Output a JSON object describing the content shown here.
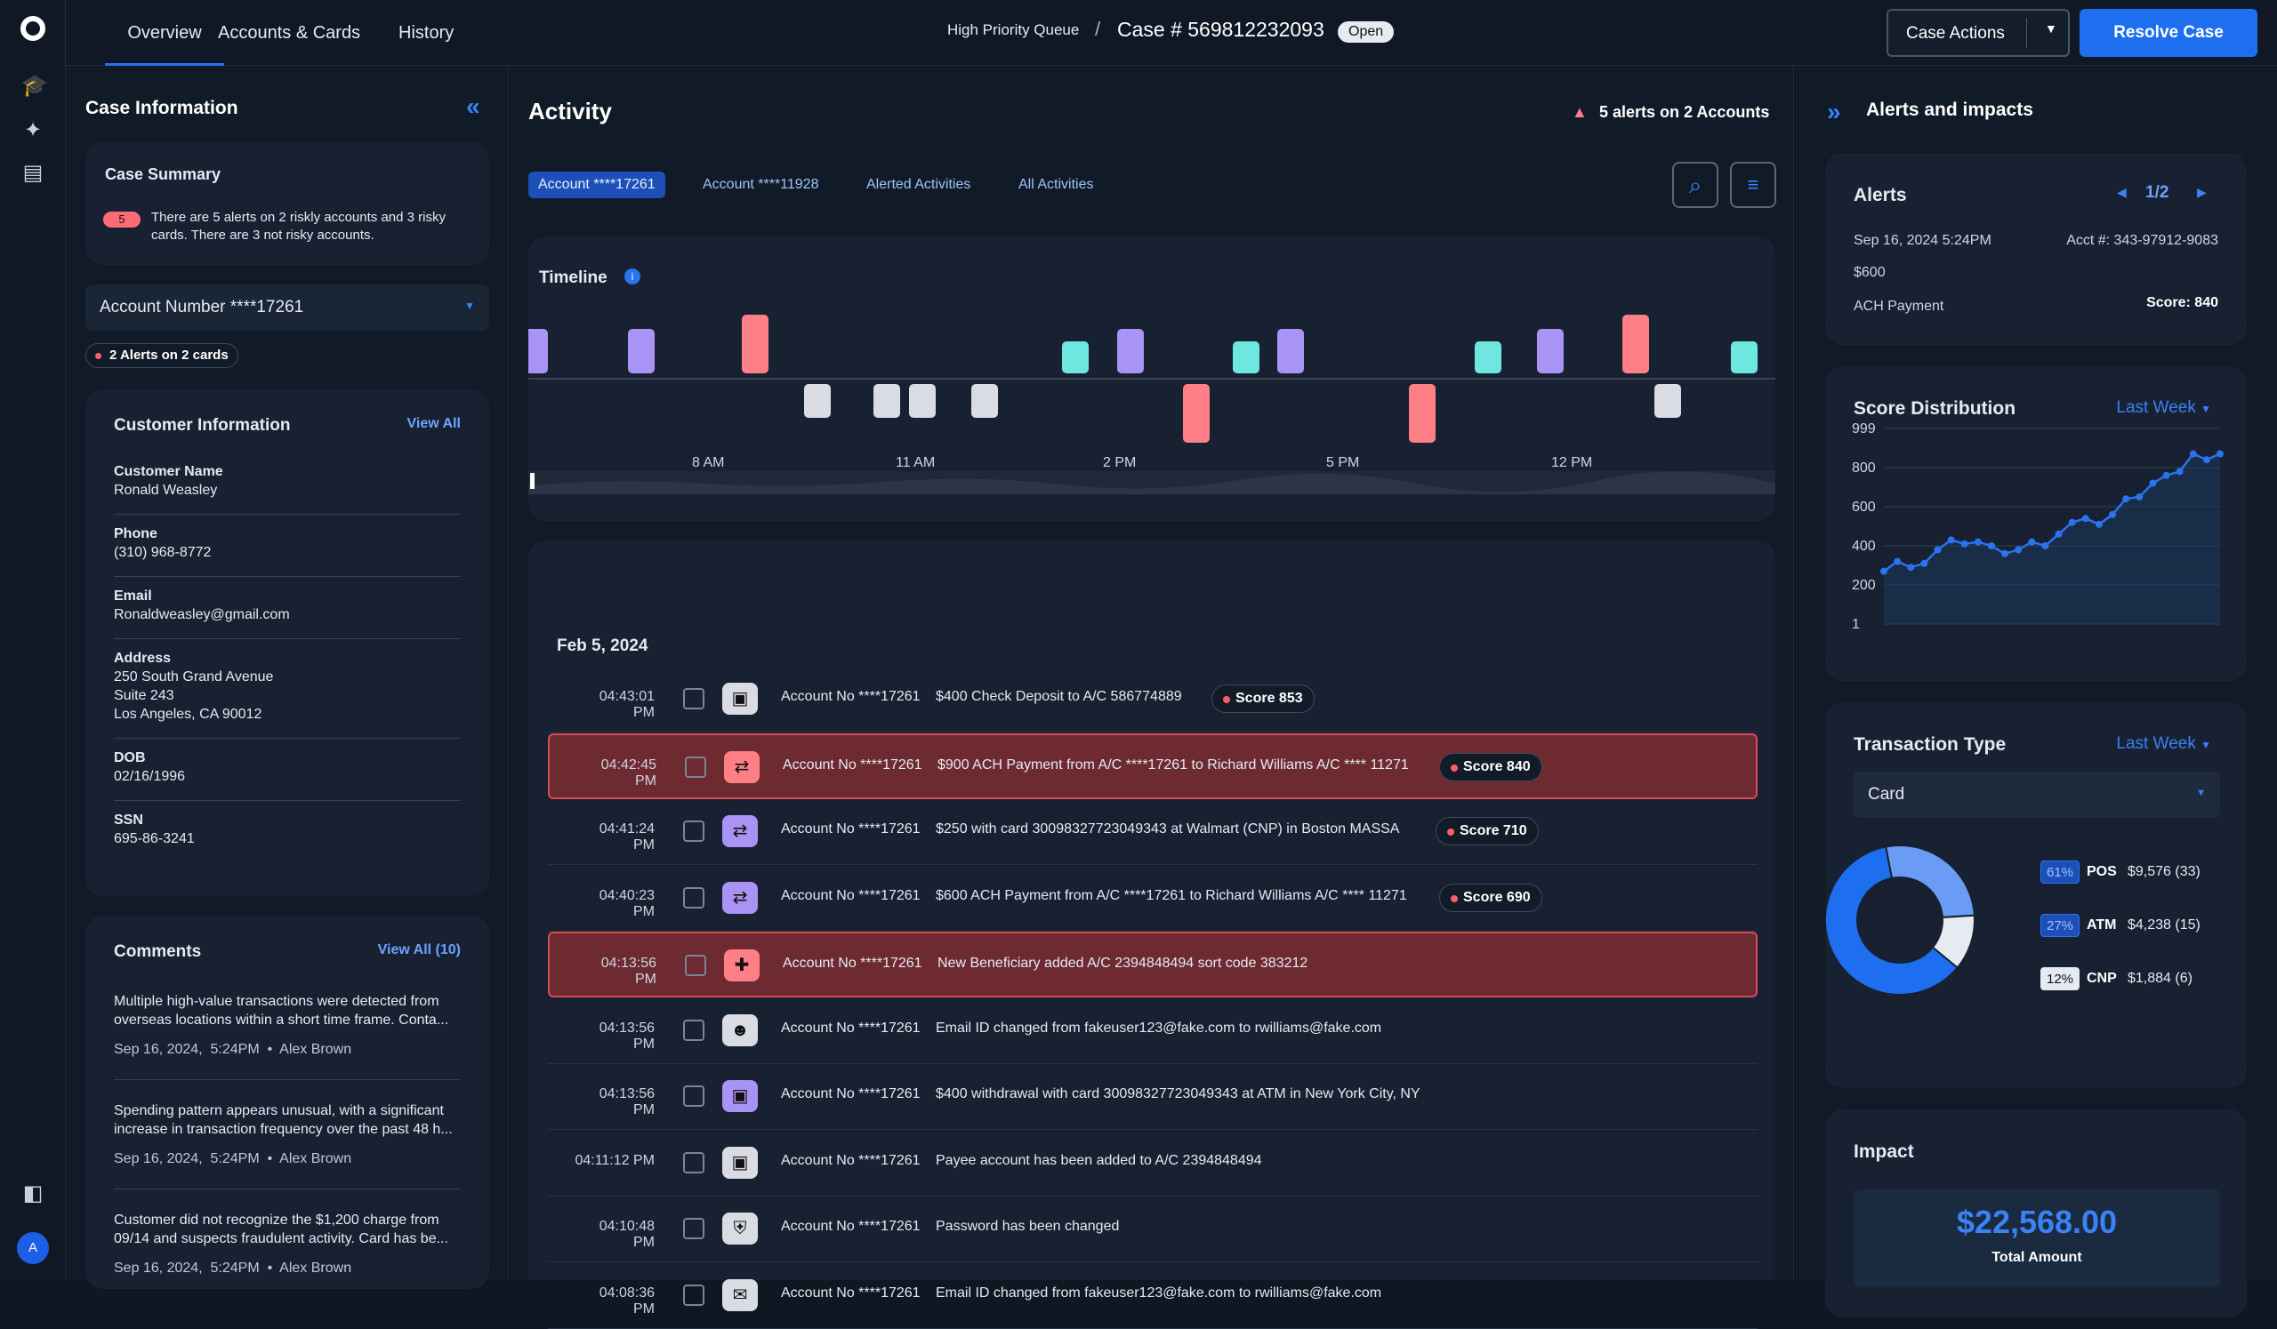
{
  "nav": {
    "tabs": [
      "Overview",
      "Accounts & Cards",
      "History"
    ],
    "breadcrumb_queue": "High Priority Queue",
    "breadcrumb_sep": "/",
    "case_number": "Case # 569812232093",
    "case_status": "Open",
    "case_actions": "Case Actions",
    "resolve": "Resolve Case",
    "avatar": "A"
  },
  "left": {
    "title": "Case Information",
    "summary": {
      "title": "Case Summary",
      "badge": "5",
      "text_line1": "There are 5 alerts on 2 riskly accounts and 3 risky",
      "text_line2": "cards. There are 3 not risky accounts."
    },
    "account_select": "Account Number ****17261",
    "alerts_tag": "2 Alerts on 2 cards",
    "customer": {
      "title": "Customer Information",
      "view_all": "View All",
      "fields": [
        {
          "label": "Customer Name",
          "lines": [
            "Ronald Weasley"
          ]
        },
        {
          "label": "Phone",
          "lines": [
            "(310) 968-8772"
          ]
        },
        {
          "label": "Email",
          "lines": [
            "Ronaldweasley@gmail.com"
          ]
        },
        {
          "label": "Address",
          "lines": [
            "250 South Grand Avenue",
            "Suite 243",
            "Los Angeles, CA 90012"
          ]
        },
        {
          "label": "DOB",
          "lines": [
            "02/16/1996"
          ]
        },
        {
          "label": "SSN",
          "lines": [
            "695-86-3241"
          ]
        }
      ]
    },
    "comments": {
      "title": "Comments",
      "view_all": "View All  (10)",
      "items": [
        {
          "l1": "Multiple high-value transactions were detected from",
          "l2": "overseas locations within a short time frame. Conta...",
          "meta": "Sep 16, 2024,  5:24PM  •  Alex Brown"
        },
        {
          "l1": "Spending pattern appears unusual, with a significant",
          "l2": "increase in transaction frequency over the past 48 h...",
          "meta": "Sep 16, 2024,  5:24PM  •  Alex Brown"
        },
        {
          "l1": "Customer did not recognize the $1,200 charge from",
          "l2": "09/14 and suspects fraudulent activity. Card has be...",
          "meta": "Sep 16, 2024,  5:24PM  •  Alex Brown"
        }
      ]
    }
  },
  "activity": {
    "title": "Activity",
    "alerts_summary": "5 alerts on 2 Accounts",
    "chips": [
      "Account ****17261",
      "Account ****11928",
      "Alerted Activities",
      "All Activities"
    ],
    "timeline": {
      "title": "Timeline",
      "ticks": [
        "8 AM",
        "11 AM",
        "2 PM",
        "5 PM",
        "12 PM"
      ]
    },
    "date": "Feb 5, 2024",
    "rows": [
      {
        "time": "04:43:01 PM",
        "acc": "Account No ****17261",
        "desc": "$400 Check Deposit to A/C 586774889",
        "score": "Score 853",
        "alert": false,
        "icon": "check-deposit-icon",
        "glyph": "▣",
        "color": "#d9dde3"
      },
      {
        "time": "04:42:45 PM",
        "acc": "Account No ****17261",
        "desc": "$900 ACH Payment from A/C ****17261 to Richard Williams A/C **** 11271",
        "score": "Score 840",
        "alert": true,
        "icon": "transfer-icon",
        "glyph": "⇄",
        "color": "#ff7f86"
      },
      {
        "time": "04:41:24 PM",
        "acc": "Account No ****17261",
        "desc": "$250 with card 30098327723049343 at Walmart (CNP) in Boston MASSA",
        "score": "Score 710",
        "alert": false,
        "icon": "transfer-icon",
        "glyph": "⇄",
        "color": "#a993f5"
      },
      {
        "time": "04:40:23 PM",
        "acc": "Account No ****17261",
        "desc": "$600 ACH Payment from A/C ****17261 to Richard Williams A/C **** 11271",
        "score": "Score 690",
        "alert": false,
        "icon": "transfer-icon",
        "glyph": "⇄",
        "color": "#a993f5"
      },
      {
        "time": "04:13:56 PM",
        "acc": "Account No ****17261",
        "desc": "New Beneficiary added A/C 2394848494 sort code 383212",
        "score": "",
        "alert": true,
        "icon": "add-user-icon",
        "glyph": "✚",
        "color": "#ff7f86"
      },
      {
        "time": "04:13:56 PM",
        "acc": "Account No ****17261",
        "desc": "Email ID changed from fakeuser123@fake.com to rwilliams@fake.com",
        "score": "",
        "alert": false,
        "icon": "user-edit-icon",
        "glyph": "☻",
        "color": "#d9dde3"
      },
      {
        "time": "04:13:56 PM",
        "acc": "Account No ****17261",
        "desc": "$400 withdrawal with card 30098327723049343 at ATM in New York City, NY",
        "score": "",
        "alert": false,
        "icon": "atm-icon",
        "glyph": "▣",
        "color": "#a993f5"
      },
      {
        "time": "04:11:12 PM",
        "acc": "Account No ****17261",
        "desc": "Payee account has been added to A/C 2394848494",
        "score": "",
        "alert": false,
        "icon": "payee-icon",
        "glyph": "▣",
        "color": "#d9dde3"
      },
      {
        "time": "04:10:48 PM",
        "acc": "Account No ****17261",
        "desc": "Password has been changed",
        "score": "",
        "alert": false,
        "icon": "shield-icon",
        "glyph": "⛨",
        "color": "#d9dde3"
      },
      {
        "time": "04:08:36 PM",
        "acc": "Account No ****17261",
        "desc": "Email ID changed from fakeuser123@fake.com to rwilliams@fake.com",
        "score": "",
        "alert": false,
        "icon": "mail-icon",
        "glyph": "✉",
        "color": "#d9dde3"
      }
    ]
  },
  "right": {
    "title": "Alerts and impacts",
    "alerts": {
      "title": "Alerts",
      "pager": "1/2",
      "date": "Sep 16, 2024  5:24PM",
      "acct": "Acct #: 343-97912-9083",
      "amount": "$600",
      "type": "ACH Payment",
      "score": "Score: 840"
    },
    "score_dist": {
      "title": "Score Distribution",
      "period": "Last Week"
    },
    "txn_type": {
      "title": "Transaction Type",
      "period": "Last Week",
      "select": "Card",
      "items": [
        {
          "pct": "61%",
          "name": "POS",
          "amount": "$9,576 (33)"
        },
        {
          "pct": "27%",
          "name": "ATM",
          "amount": "$4,238 (15)"
        },
        {
          "pct": "12%",
          "name": "CNP",
          "amount": "$1,884 (6)"
        }
      ]
    },
    "impact": {
      "title": "Impact",
      "amount": "$22,568.00",
      "label": "Total Amount"
    }
  },
  "chart_data": [
    {
      "type": "line",
      "title": "Score Distribution",
      "y_ticks": [
        "999",
        "800",
        "600",
        "400",
        "200",
        "1"
      ],
      "series": [
        {
          "values": [
            270,
            320,
            290,
            310,
            380,
            430,
            410,
            420,
            400,
            360,
            380,
            420,
            400,
            460,
            520,
            540,
            510,
            560,
            640,
            650,
            720,
            760,
            780,
            870,
            840,
            870
          ]
        }
      ],
      "ylim": [
        1,
        999
      ]
    },
    {
      "type": "pie",
      "title": "Transaction Type",
      "categories": [
        "POS",
        "ATM",
        "CNP"
      ],
      "values": [
        61,
        27,
        12
      ],
      "colors": [
        "#1d6ff0",
        "#6b9cf5",
        "#e6ebf2"
      ]
    }
  ]
}
